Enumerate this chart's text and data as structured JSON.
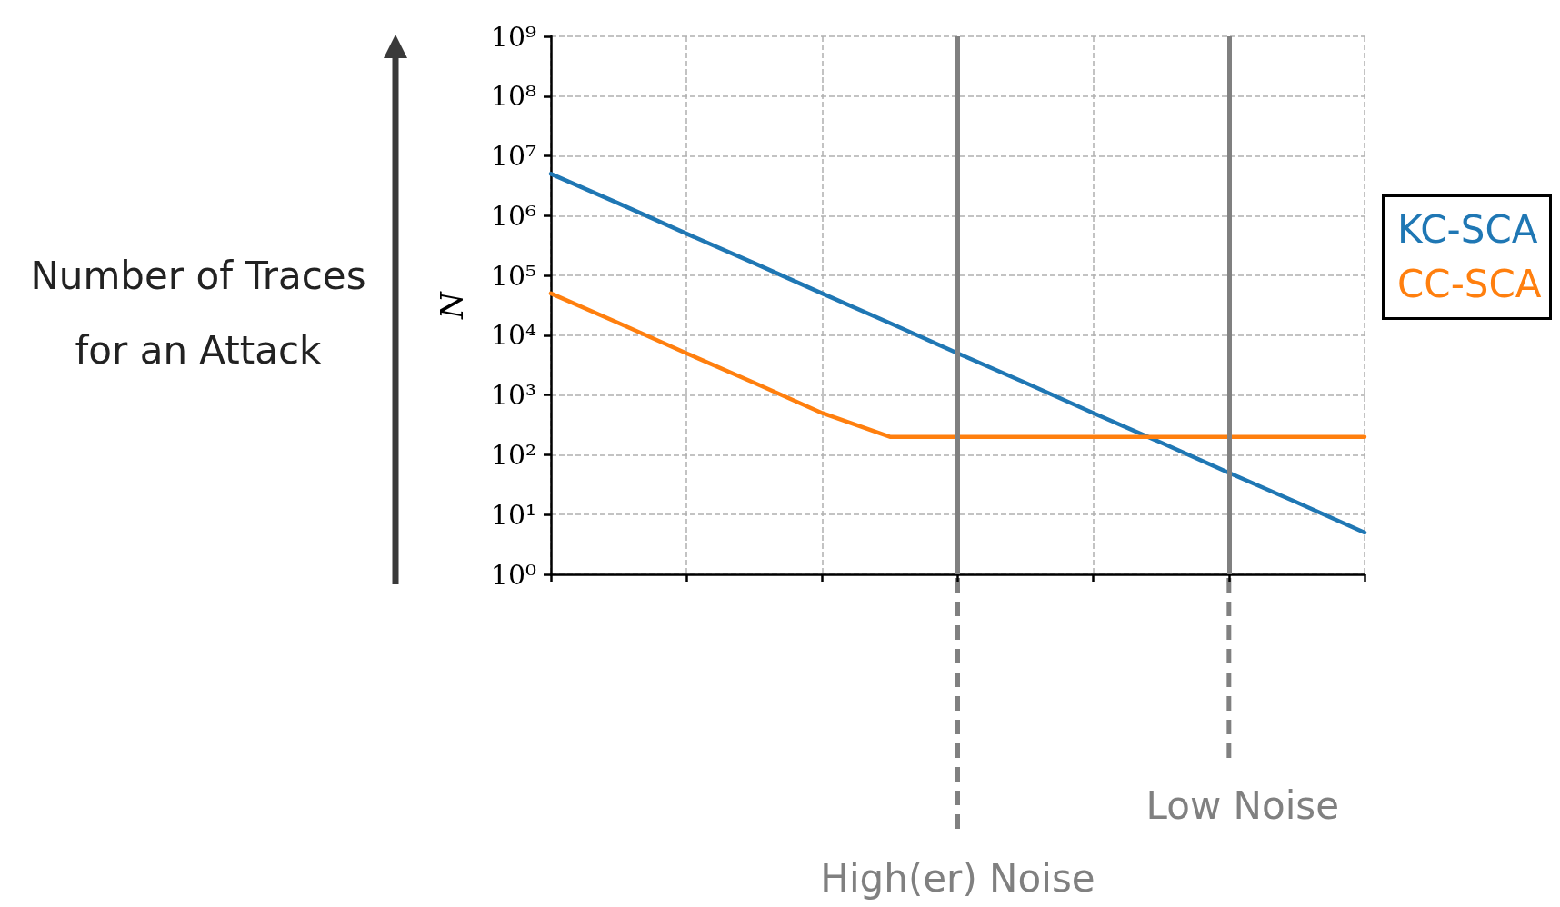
{
  "chart_data": {
    "type": "line",
    "ylabel": "N",
    "log": "y",
    "grid": true,
    "legend": false,
    "tick_labels": "y",
    "marker": "none",
    "line_style": "solid",
    "categories": [
      null,
      null,
      null,
      null,
      null,
      null,
      null,
      null,
      null,
      null,
      null,
      null,
      null
    ],
    "ylim": [
      1,
      1000000000
    ],
    "yticks": [
      {
        "value": 1,
        "label": "10⁰"
      },
      {
        "value": 10,
        "label": "10¹"
      },
      {
        "value": 100,
        "label": "10²"
      },
      {
        "value": 1000,
        "label": "10³"
      },
      {
        "value": 10000,
        "label": "10⁴"
      },
      {
        "value": 100000,
        "label": "10⁵"
      },
      {
        "value": 1000000,
        "label": "10⁶"
      },
      {
        "value": 10000000,
        "label": "10⁷"
      },
      {
        "value": 100000000,
        "label": "10⁸"
      },
      {
        "value": 1000000000,
        "label": "10⁹"
      }
    ],
    "series": [
      {
        "name": "KC-SCA",
        "color": "#1f77b4",
        "values": [
          5000000,
          1600000,
          500000,
          160000,
          50000,
          16000,
          5000,
          1600,
          500,
          160,
          50,
          16,
          5
        ]
      },
      {
        "name": "CC-SCA",
        "color": "#ff7f0e",
        "values": [
          50000,
          16000,
          5000,
          1600,
          500,
          200,
          200,
          200,
          200,
          200,
          200,
          200,
          200
        ]
      }
    ],
    "annotations": [
      "Number of Traces for an Attack",
      "High(er) Noise",
      "Low Noise"
    ]
  }
}
